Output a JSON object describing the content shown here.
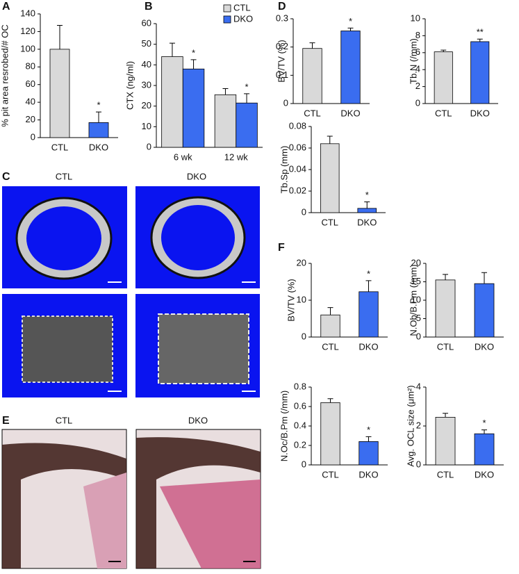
{
  "chart_data": [
    {
      "type": "bar",
      "panel": "A",
      "y_label": "% pit area resrobed/# OC",
      "categories": [
        "CTL",
        "DKO"
      ],
      "values": [
        100,
        17
      ],
      "errors": [
        27,
        12
      ],
      "colors": [
        "#d9d9d9",
        "#3a6df0"
      ],
      "significance": [
        null,
        "*"
      ],
      "ylim": [
        0,
        140
      ],
      "yticks": [
        0,
        20,
        40,
        60,
        80,
        100,
        120,
        140
      ]
    },
    {
      "type": "grouped-bar",
      "panel": "B",
      "y_label": "CTX (ng/ml)",
      "categories": [
        "6 wk",
        "12 wk"
      ],
      "series": [
        {
          "name": "CTL",
          "color": "#d9d9d9",
          "values": [
            44,
            25.5
          ],
          "errors": [
            6.5,
            3
          ],
          "significance": [
            null,
            null
          ]
        },
        {
          "name": "DKO",
          "color": "#3a6df0",
          "values": [
            38,
            21.5
          ],
          "errors": [
            4.5,
            4.5
          ],
          "significance": [
            "*",
            "*"
          ]
        }
      ],
      "ylim": [
        0,
        60
      ],
      "yticks": [
        0,
        10,
        20,
        30,
        40,
        50,
        60
      ],
      "legend": "top-right"
    },
    {
      "type": "bar",
      "panel": "D",
      "y_label": "BV/TV (%)",
      "categories": [
        "CTL",
        "DKO"
      ],
      "values": [
        0.195,
        0.257
      ],
      "errors": [
        0.02,
        0.01
      ],
      "colors": [
        "#d9d9d9",
        "#3a6df0"
      ],
      "significance": [
        null,
        "*"
      ],
      "ylim": [
        0,
        0.3
      ],
      "yticks": [
        0,
        0.1,
        0.2,
        0.3
      ]
    },
    {
      "type": "bar",
      "y_label": "Tb.N (/mm)",
      "categories": [
        "CTL",
        "DKO"
      ],
      "values": [
        6.1,
        7.3
      ],
      "errors": [
        0.2,
        0.3
      ],
      "colors": [
        "#d9d9d9",
        "#3a6df0"
      ],
      "significance": [
        null,
        "**"
      ],
      "ylim": [
        0,
        10
      ],
      "yticks": [
        0,
        2,
        4,
        6,
        8,
        10
      ]
    },
    {
      "type": "bar",
      "y_label": "Tb.Sp  (mm)",
      "categories": [
        "CTL",
        "DKO"
      ],
      "values": [
        0.064,
        0.004
      ],
      "errors": [
        0.007,
        0.006
      ],
      "colors": [
        "#d9d9d9",
        "#3a6df0"
      ],
      "significance": [
        null,
        "*"
      ],
      "ylim": [
        0,
        0.08
      ],
      "yticks": [
        0,
        0.02,
        0.04,
        0.06,
        0.08
      ]
    },
    {
      "type": "bar",
      "panel": "F",
      "y_label": "BV/TV (%)",
      "categories": [
        "CTL",
        "DKO"
      ],
      "values": [
        6,
        12.3
      ],
      "errors": [
        2,
        3
      ],
      "colors": [
        "#d9d9d9",
        "#3a6df0"
      ],
      "significance": [
        null,
        "*"
      ],
      "ylim": [
        0,
        20
      ],
      "yticks": [
        0,
        10,
        20
      ]
    },
    {
      "type": "bar",
      "y_label": "N.Ob/B.Pm (/mm)",
      "categories": [
        "CTL",
        "DKO"
      ],
      "values": [
        15.5,
        14.5
      ],
      "errors": [
        1.5,
        3
      ],
      "colors": [
        "#d9d9d9",
        "#3a6df0"
      ],
      "significance": [
        null,
        null
      ],
      "ylim": [
        0,
        20
      ],
      "yticks": [
        0,
        5,
        10,
        15,
        20
      ]
    },
    {
      "type": "bar",
      "y_label": "N.Oc/B.Pm (/mm)",
      "categories": [
        "CTL",
        "DKO"
      ],
      "values": [
        0.64,
        0.24
      ],
      "errors": [
        0.04,
        0.05
      ],
      "colors": [
        "#d9d9d9",
        "#3a6df0"
      ],
      "significance": [
        null,
        "*"
      ],
      "ylim": [
        0,
        0.8
      ],
      "yticks": [
        0,
        0.2,
        0.4,
        0.6,
        0.8
      ]
    },
    {
      "type": "bar",
      "y_label": "Avg. OCL size (μm²)",
      "categories": [
        "CTL",
        "DKO"
      ],
      "values": [
        2.45,
        1.6
      ],
      "errors": [
        0.2,
        0.2
      ],
      "colors": [
        "#d9d9d9",
        "#3a6df0"
      ],
      "significance": [
        null,
        "*"
      ],
      "ylim": [
        0,
        4
      ],
      "yticks": [
        0,
        2,
        4
      ]
    }
  ],
  "image_panels": [
    {
      "letter": "C",
      "labels": [
        "CTL",
        "DKO"
      ]
    },
    {
      "letter": "E",
      "labels": [
        "CTL",
        "DKO"
      ]
    }
  ]
}
